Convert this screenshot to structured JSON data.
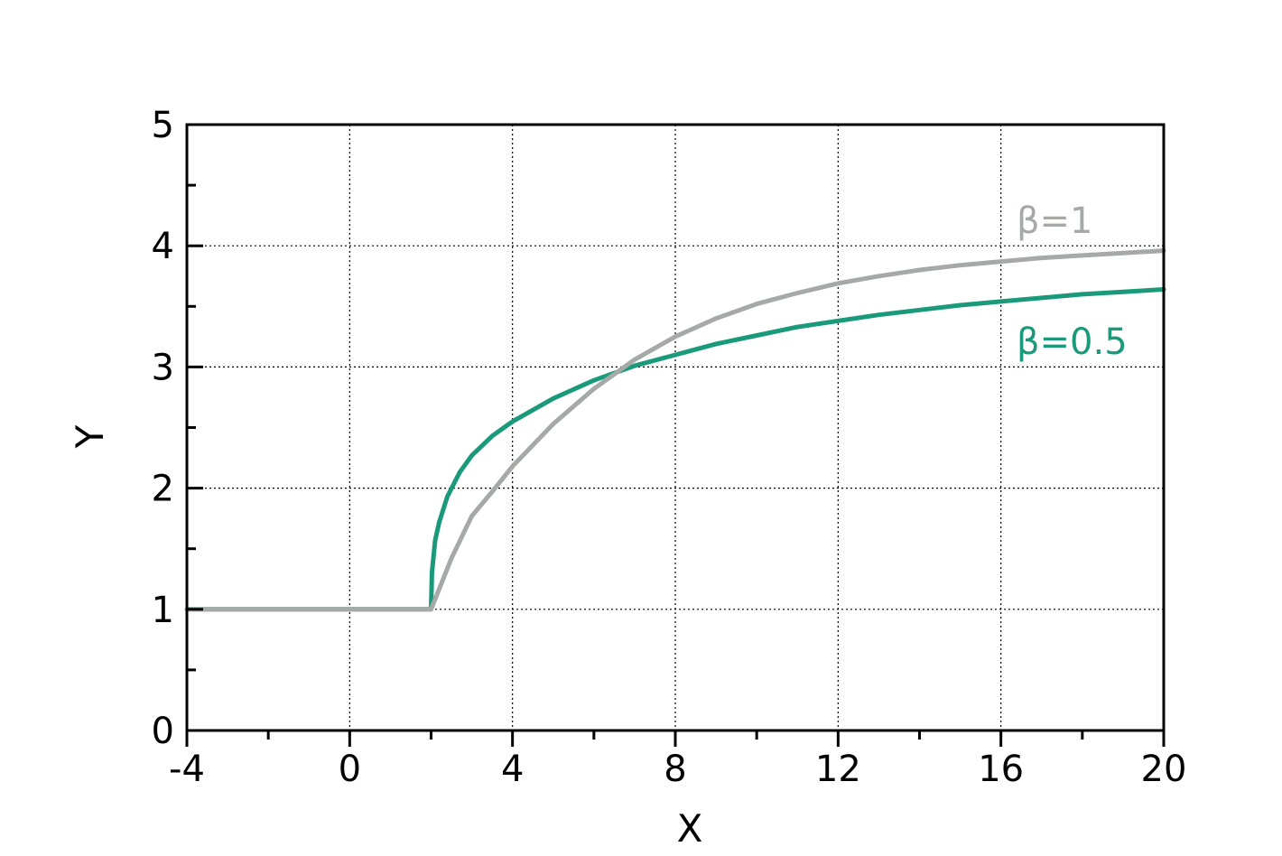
{
  "chart_data": {
    "type": "line",
    "title": "",
    "xlabel": "X",
    "ylabel": "Y",
    "xlim": [
      -4,
      20
    ],
    "ylim": [
      0,
      5
    ],
    "x_ticks": [
      -4,
      0,
      4,
      8,
      12,
      16,
      20
    ],
    "y_ticks": [
      0,
      1,
      2,
      3,
      4,
      5
    ],
    "x_tick_labels": [
      "-4",
      "0",
      "4",
      "8",
      "12",
      "16",
      "20"
    ],
    "y_tick_labels": [
      "0",
      "1",
      "2",
      "3",
      "4",
      "5"
    ],
    "grid": true,
    "legend": "inline",
    "series": [
      {
        "name": "β=1",
        "color": "#a5aaa7",
        "x": [
          -4,
          0,
          2,
          2.5,
          3,
          3.5,
          4,
          5,
          6,
          7,
          8,
          9,
          10,
          11,
          12,
          13,
          14,
          15,
          16,
          17,
          18,
          19,
          20
        ],
        "y": [
          1,
          1,
          1,
          1.42,
          1.77,
          1.97,
          2.18,
          2.53,
          2.82,
          3.06,
          3.25,
          3.4,
          3.52,
          3.61,
          3.69,
          3.75,
          3.8,
          3.84,
          3.87,
          3.9,
          3.92,
          3.94,
          3.96
        ]
      },
      {
        "name": "β=0.5",
        "color": "#1a9a7a",
        "x": [
          -4,
          0,
          2,
          2.02,
          2.1,
          2.2,
          2.4,
          2.7,
          3,
          3.5,
          4,
          5,
          6,
          7,
          8,
          9,
          10,
          11,
          12,
          13,
          14,
          15,
          16,
          17,
          18,
          19,
          20
        ],
        "y": [
          1,
          1,
          1,
          1.3,
          1.57,
          1.72,
          1.93,
          2.13,
          2.27,
          2.43,
          2.55,
          2.74,
          2.89,
          3.01,
          3.1,
          3.19,
          3.26,
          3.33,
          3.38,
          3.43,
          3.47,
          3.51,
          3.54,
          3.57,
          3.6,
          3.62,
          3.64
        ]
      }
    ]
  }
}
